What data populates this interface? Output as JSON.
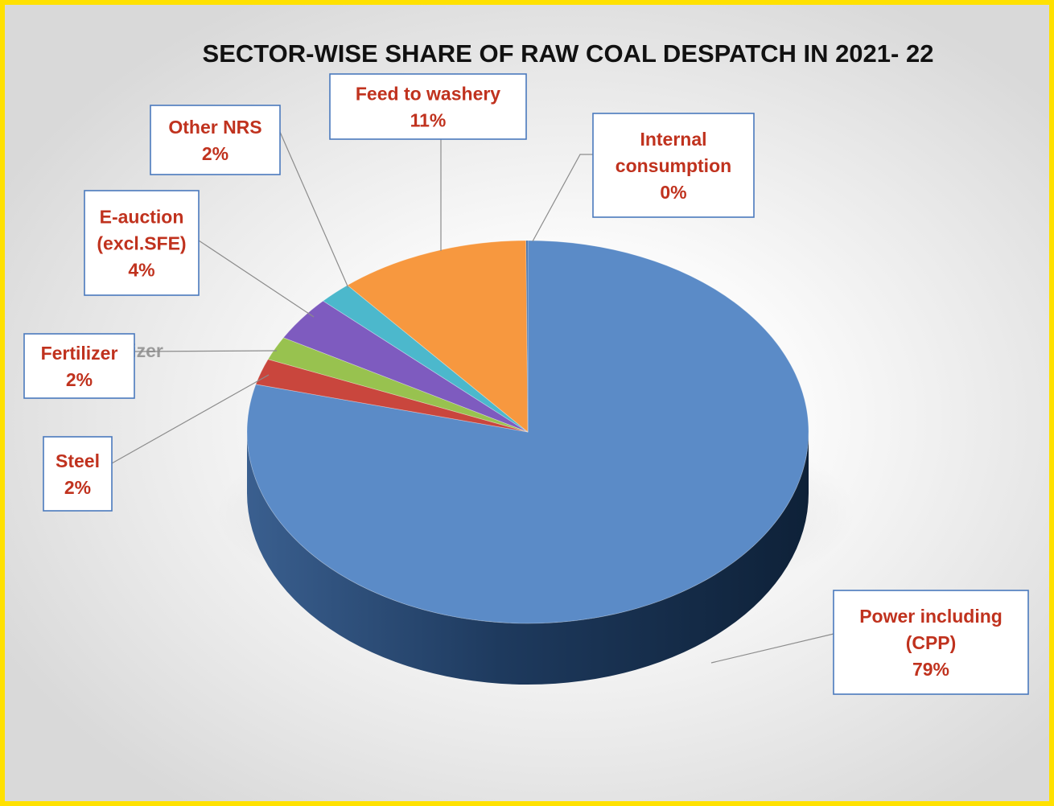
{
  "chart_data": {
    "type": "pie",
    "title": "SECTOR-WISE SHARE OF RAW COAL DESPATCH IN 2021- 22",
    "slices": [
      {
        "label_lines": [
          "Power including",
          "(CPP)"
        ],
        "percent_label": "79%",
        "value": 79,
        "color": "#5b8bc7",
        "side_color": "#1f3f66"
      },
      {
        "label_lines": [
          "Steel"
        ],
        "percent_label": "2%",
        "value": 2.2,
        "color": "#c9463d",
        "side_color": "#7a2622"
      },
      {
        "label_lines": [
          "Fertilizer"
        ],
        "percent_label": "2%",
        "value": 2.0,
        "color": "#98c24f",
        "side_color": "#5a7a2a"
      },
      {
        "label_lines": [
          "E-auction",
          "(excl.SFE)"
        ],
        "percent_label": "4%",
        "value": 3.8,
        "color": "#7e5bbf",
        "side_color": "#4a3478"
      },
      {
        "label_lines": [
          "Other NRS"
        ],
        "percent_label": "2%",
        "value": 1.9,
        "color": "#4cb8cc",
        "side_color": "#2a7080"
      },
      {
        "label_lines": [
          "Feed to washery"
        ],
        "percent_label": "11%",
        "value": 11.0,
        "color": "#f7983f",
        "side_color": "#a05e20"
      },
      {
        "label_lines": [
          "Internal",
          "consumption"
        ],
        "percent_label": "0%",
        "value": 0.1,
        "color": "#3c6aa6",
        "side_color": "#22405f"
      }
    ],
    "ghost_label": "Fertilizer"
  }
}
